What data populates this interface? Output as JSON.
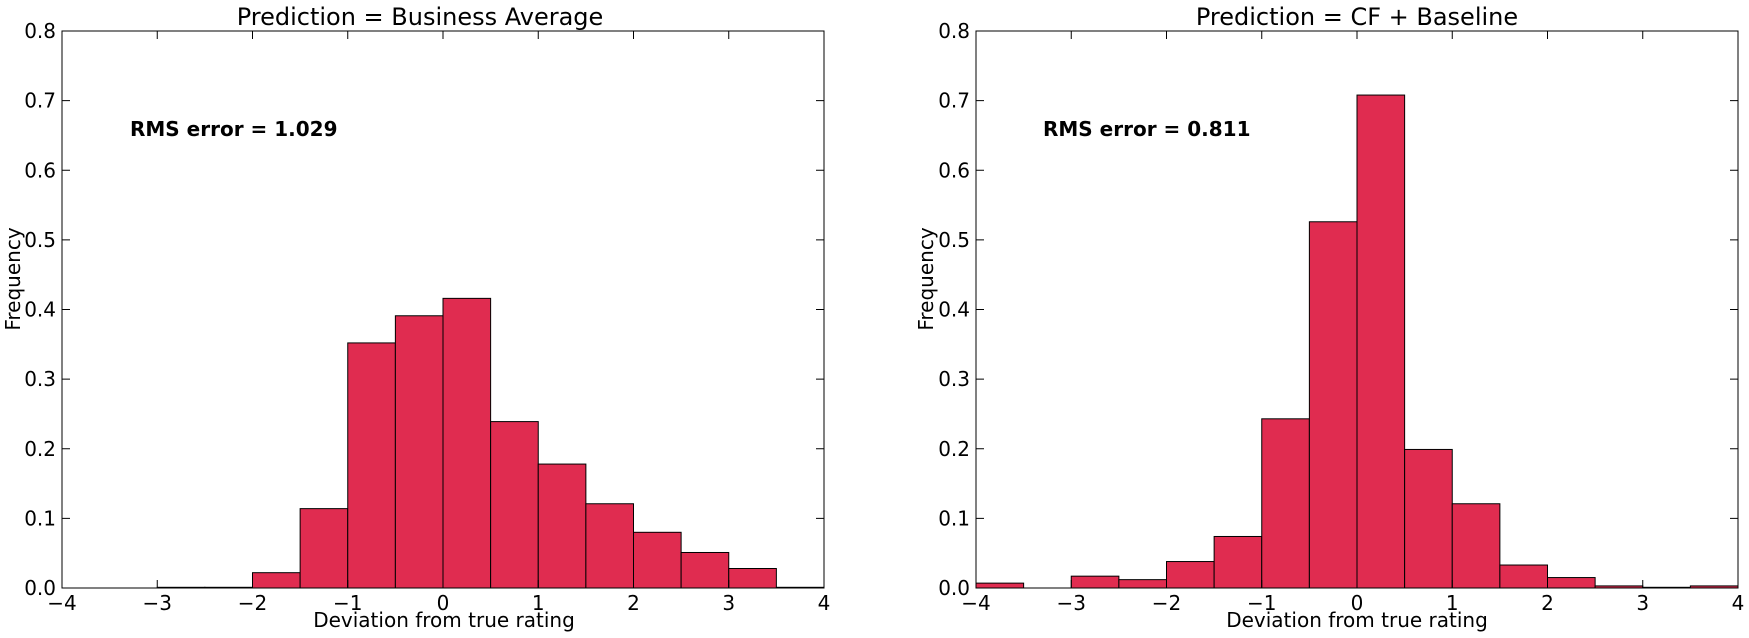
{
  "colors": {
    "bar_fill": "#e02c50",
    "bar_edge": "#000000",
    "frame": "#000000"
  },
  "chart_data": [
    {
      "type": "bar",
      "title": "Prediction = Business Average",
      "xlabel": "Deviation from true rating",
      "ylabel": "Frequency",
      "xlim": [
        -4,
        4
      ],
      "ylim": [
        0,
        0.8
      ],
      "xticks": [
        -4,
        -3,
        -2,
        -1,
        0,
        1,
        2,
        3,
        4
      ],
      "xtick_labels": [
        "−4",
        "−3",
        "−2",
        "−1",
        "0",
        "1",
        "2",
        "3",
        "4"
      ],
      "yticks": [
        0,
        0.1,
        0.2,
        0.3,
        0.4,
        0.5,
        0.6,
        0.7,
        0.8
      ],
      "ytick_labels": [
        "0.0",
        "0.1",
        "0.2",
        "0.3",
        "0.4",
        "0.5",
        "0.6",
        "0.7",
        "0.8"
      ],
      "bin_width": 0.5,
      "bin_starts": [
        -3.0,
        -2.5,
        -2.0,
        -1.5,
        -1.0,
        -0.5,
        0.0,
        0.5,
        1.0,
        1.5,
        2.0,
        2.5,
        3.0,
        3.5
      ],
      "values": [
        0.001,
        0.001,
        0.022,
        0.114,
        0.352,
        0.391,
        0.416,
        0.239,
        0.178,
        0.121,
        0.08,
        0.051,
        0.028,
        0.001
      ],
      "annotation": "RMS error = 1.029",
      "grid": false
    },
    {
      "type": "bar",
      "title": "Prediction = CF + Baseline",
      "xlabel": "Deviation from true rating",
      "ylabel": "Frequency",
      "xlim": [
        -4,
        4
      ],
      "ylim": [
        0,
        0.8
      ],
      "xticks": [
        -4,
        -3,
        -2,
        -1,
        0,
        1,
        2,
        3,
        4
      ],
      "xtick_labels": [
        "−4",
        "−3",
        "−2",
        "−1",
        "0",
        "1",
        "2",
        "3",
        "4"
      ],
      "yticks": [
        0,
        0.1,
        0.2,
        0.3,
        0.4,
        0.5,
        0.6,
        0.7,
        0.8
      ],
      "ytick_labels": [
        "0.0",
        "0.1",
        "0.2",
        "0.3",
        "0.4",
        "0.5",
        "0.6",
        "0.7",
        "0.8"
      ],
      "bin_width": 0.5,
      "bin_starts": [
        -4.0,
        -3.5,
        -3.0,
        -2.5,
        -2.0,
        -1.5,
        -1.0,
        -0.5,
        0.0,
        0.5,
        1.0,
        1.5,
        2.0,
        2.5,
        3.0,
        3.5
      ],
      "values": [
        0.007,
        0.0,
        0.017,
        0.012,
        0.038,
        0.074,
        0.243,
        0.526,
        0.708,
        0.199,
        0.121,
        0.033,
        0.015,
        0.003,
        0.001,
        0.003
      ],
      "annotation": "RMS error = 0.811",
      "grid": false
    }
  ]
}
